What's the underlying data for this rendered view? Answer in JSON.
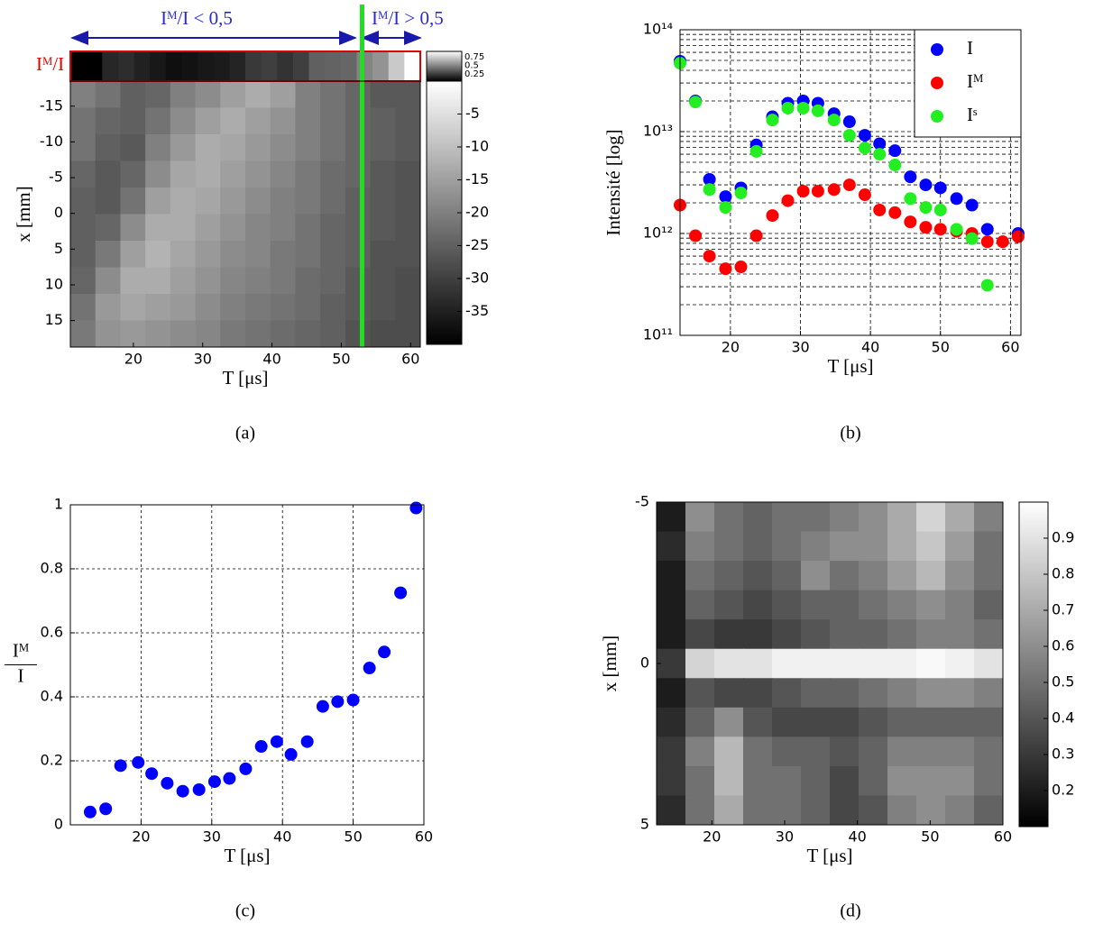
{
  "chart_data": [
    {
      "type": "heatmap",
      "xlabel": "T [μs]",
      "ylabel": "x [mm]",
      "xlim": [
        10.9,
        61.4
      ],
      "ylim": [
        -18.5,
        18.7
      ],
      "yaxis_reversed": true,
      "xticks": [
        20,
        30,
        40,
        50,
        60
      ],
      "yticks": [
        -15,
        -10,
        -5,
        0,
        5,
        10,
        15
      ],
      "clim": [
        -40,
        0
      ],
      "cticks": [
        -5,
        -10,
        -15,
        -20,
        -25,
        -30,
        -35
      ],
      "matrix": [
        [
          -20,
          -22,
          -25,
          -24,
          -20,
          -18,
          -15,
          -13,
          -15,
          -20,
          -22,
          -24,
          -26,
          -26
        ],
        [
          -22,
          -24,
          -25,
          -22,
          -18,
          -15,
          -13,
          -15,
          -17,
          -20,
          -22,
          -24,
          -25,
          -26
        ],
        [
          -22,
          -25,
          -26,
          -20,
          -16,
          -13,
          -14,
          -16,
          -18,
          -20,
          -22,
          -24,
          -25,
          -26
        ],
        [
          -24,
          -26,
          -24,
          -18,
          -14,
          -13,
          -15,
          -17,
          -19,
          -21,
          -23,
          -24,
          -26,
          -27
        ],
        [
          -25,
          -26,
          -22,
          -15,
          -13,
          -14,
          -16,
          -18,
          -20,
          -21,
          -23,
          -25,
          -26,
          -27
        ],
        [
          -25,
          -24,
          -18,
          -13,
          -13,
          -15,
          -17,
          -19,
          -20,
          -22,
          -24,
          -25,
          -26,
          -27
        ],
        [
          -25,
          -21,
          -15,
          -12,
          -14,
          -16,
          -18,
          -19,
          -21,
          -22,
          -24,
          -25,
          -27,
          -27
        ],
        [
          -24,
          -18,
          -13,
          -13,
          -15,
          -17,
          -19,
          -20,
          -21,
          -23,
          -24,
          -26,
          -27,
          -28
        ],
        [
          -22,
          -16,
          -14,
          -15,
          -16,
          -18,
          -20,
          -21,
          -22,
          -23,
          -25,
          -26,
          -27,
          -28
        ],
        [
          -21,
          -17,
          -16,
          -17,
          -18,
          -19,
          -21,
          -22,
          -23,
          -24,
          -25,
          -27,
          -28,
          -28
        ]
      ],
      "strip_label": "Iᴹ/I",
      "strip": [
        0.04,
        0.05,
        0.18,
        0.2,
        0.16,
        0.13,
        0.1,
        0.11,
        0.13,
        0.14,
        0.17,
        0.24,
        0.26,
        0.22,
        0.26,
        0.37,
        0.38,
        0.39,
        0.49,
        0.54,
        0.72,
        0.99
      ],
      "strip_clim": [
        0.05,
        0.9
      ],
      "strip_cticks": [
        0.75,
        0.5,
        0.25
      ],
      "marker_line": {
        "x": 53,
        "color": "#22dd22"
      },
      "annotations": [
        "Iᴹ/I < 0,5",
        "Iᴹ/I > 0,5"
      ],
      "caption": "(a)"
    },
    {
      "type": "scatter",
      "xlabel": "T [μs]",
      "ylabel": "Intensité [log]",
      "log_y": true,
      "grid": true,
      "legend": "upper right",
      "xlim": [
        12.8,
        61.5
      ],
      "ylim": [
        100000000000.0,
        100000000000000.0
      ],
      "xticks": [
        20,
        30,
        40,
        50,
        60
      ],
      "yticks": [
        {
          "value": 100000000000.0,
          "label": "10¹¹"
        },
        {
          "value": 1000000000000.0,
          "label": "10¹²"
        },
        {
          "value": 10000000000000.0,
          "label": "10¹³"
        },
        {
          "value": 100000000000000.0,
          "label": "10¹⁴"
        }
      ],
      "y_minor_ticks": [
        200000000000.0,
        300000000000.0,
        400000000000.0,
        500000000000.0,
        600000000000.0,
        700000000000.0,
        800000000000.0,
        900000000000.0,
        2000000000000.0,
        3000000000000.0,
        4000000000000.0,
        5000000000000.0,
        6000000000000.0,
        7000000000000.0,
        8000000000000.0,
        9000000000000.0,
        20000000000000.0,
        30000000000000.0,
        40000000000000.0,
        50000000000000.0,
        60000000000000.0,
        70000000000000.0,
        80000000000000.0,
        90000000000000.0
      ],
      "x": [
        12.8,
        15,
        17,
        19.3,
        21.5,
        23.7,
        26,
        28.2,
        30.4,
        32.5,
        34.8,
        37,
        39.2,
        41.3,
        43.5,
        45.7,
        47.9,
        50,
        52.3,
        54.5,
        56.7,
        58.9,
        61.1
      ],
      "series": [
        {
          "name": "I",
          "color": "#0000ff",
          "values": [
            49000000000000.0,
            20000000000000.0,
            3400000000000.0,
            2300000000000.0,
            2800000000000.0,
            7400000000000.0,
            14000000000000.0,
            19000000000000.0,
            20000000000000.0,
            19000000000000.0,
            15000000000000.0,
            12500000000000.0,
            9200000000000.0,
            7600000000000.0,
            6500000000000.0,
            3600000000000.0,
            3000000000000.0,
            2800000000000.0,
            2200000000000.0,
            1900000000000.0,
            1100000000000.0,
            null,
            1000000000000.0
          ]
        },
        {
          "name": "Iᴹ",
          "color": "#ff0000",
          "values": [
            1900000000000.0,
            950000000000.0,
            600000000000.0,
            450000000000.0,
            470000000000.0,
            950000000000.0,
            1500000000000.0,
            2100000000000.0,
            2600000000000.0,
            2600000000000.0,
            2700000000000.0,
            3000000000000.0,
            2400000000000.0,
            1700000000000.0,
            1600000000000.0,
            1300000000000.0,
            1150000000000.0,
            1100000000000.0,
            1050000000000.0,
            1000000000000.0,
            830000000000.0,
            830000000000.0,
            930000000000.0
          ]
        },
        {
          "name": "Iˢ",
          "color": "#22ee22",
          "values": [
            47000000000000.0,
            19500000000000.0,
            2700000000000.0,
            1800000000000.0,
            2500000000000.0,
            6400000000000.0,
            13000000000000.0,
            17000000000000.0,
            17000000000000.0,
            16000000000000.0,
            13000000000000.0,
            9200000000000.0,
            6900000000000.0,
            6000000000000.0,
            4700000000000.0,
            2200000000000.0,
            1800000000000.0,
            1700000000000.0,
            1100000000000.0,
            890000000000.0,
            310000000000.0,
            null,
            null
          ]
        }
      ],
      "caption": "(b)"
    },
    {
      "type": "scatter",
      "xlabel": "T [μs]",
      "ylabel": {
        "numerator": "Iᴹ",
        "denominator": "I"
      },
      "grid": true,
      "xlim": [
        10,
        60
      ],
      "ylim": [
        0,
        1
      ],
      "xticks": [
        20,
        30,
        40,
        50,
        60
      ],
      "yticks": [
        0,
        0.2,
        0.4,
        0.6,
        0.8,
        1
      ],
      "x": [
        12.8,
        15,
        17.1,
        19.6,
        21.5,
        23.7,
        25.9,
        28.2,
        30.4,
        32.5,
        34.8,
        37,
        39.2,
        41.2,
        43.5,
        45.7,
        47.8,
        50,
        52.3,
        54.4,
        56.7,
        58.9
      ],
      "series": [
        {
          "color": "#0000ff",
          "values": [
            0.04,
            0.05,
            0.185,
            0.195,
            0.16,
            0.13,
            0.105,
            0.11,
            0.135,
            0.145,
            0.175,
            0.245,
            0.26,
            0.22,
            0.26,
            0.37,
            0.385,
            0.39,
            0.49,
            0.54,
            0.725,
            0.99
          ]
        }
      ],
      "caption": "(c)"
    },
    {
      "type": "heatmap",
      "xlabel": "T [μs]",
      "ylabel": "x [mm]",
      "xlim": [
        12.4,
        60
      ],
      "ylim": [
        -5,
        5
      ],
      "yaxis_reversed": true,
      "xticks": [
        20,
        30,
        40,
        50,
        60
      ],
      "yticks": [
        -5,
        0,
        5
      ],
      "clim": [
        0.1,
        1
      ],
      "cticks": [
        0.9,
        0.8,
        0.7,
        0.6,
        0.5,
        0.4,
        0.3,
        0.2
      ],
      "matrix": [
        [
          0.2,
          0.6,
          0.5,
          0.45,
          0.5,
          0.5,
          0.55,
          0.6,
          0.7,
          0.85,
          0.7,
          0.55
        ],
        [
          0.25,
          0.55,
          0.5,
          0.45,
          0.5,
          0.55,
          0.6,
          0.6,
          0.7,
          0.8,
          0.65,
          0.5
        ],
        [
          0.2,
          0.5,
          0.45,
          0.4,
          0.45,
          0.6,
          0.5,
          0.55,
          0.65,
          0.75,
          0.6,
          0.5
        ],
        [
          0.2,
          0.45,
          0.4,
          0.35,
          0.4,
          0.45,
          0.45,
          0.5,
          0.55,
          0.6,
          0.55,
          0.45
        ],
        [
          0.2,
          0.35,
          0.3,
          0.3,
          0.35,
          0.4,
          0.45,
          0.45,
          0.5,
          0.55,
          0.55,
          0.5
        ],
        [
          0.3,
          0.85,
          0.9,
          0.9,
          0.95,
          0.95,
          0.95,
          0.95,
          0.95,
          0.98,
          0.95,
          0.9
        ],
        [
          0.2,
          0.4,
          0.35,
          0.35,
          0.4,
          0.45,
          0.45,
          0.5,
          0.55,
          0.6,
          0.6,
          0.55
        ],
        [
          0.25,
          0.45,
          0.6,
          0.4,
          0.35,
          0.35,
          0.35,
          0.4,
          0.45,
          0.45,
          0.45,
          0.45
        ],
        [
          0.3,
          0.55,
          0.75,
          0.5,
          0.45,
          0.45,
          0.4,
          0.45,
          0.55,
          0.55,
          0.55,
          0.5
        ],
        [
          0.3,
          0.5,
          0.75,
          0.5,
          0.5,
          0.45,
          0.35,
          0.45,
          0.6,
          0.6,
          0.6,
          0.5
        ],
        [
          0.25,
          0.5,
          0.7,
          0.5,
          0.5,
          0.45,
          0.35,
          0.4,
          0.55,
          0.6,
          0.55,
          0.45
        ]
      ],
      "caption": "(d)"
    }
  ]
}
